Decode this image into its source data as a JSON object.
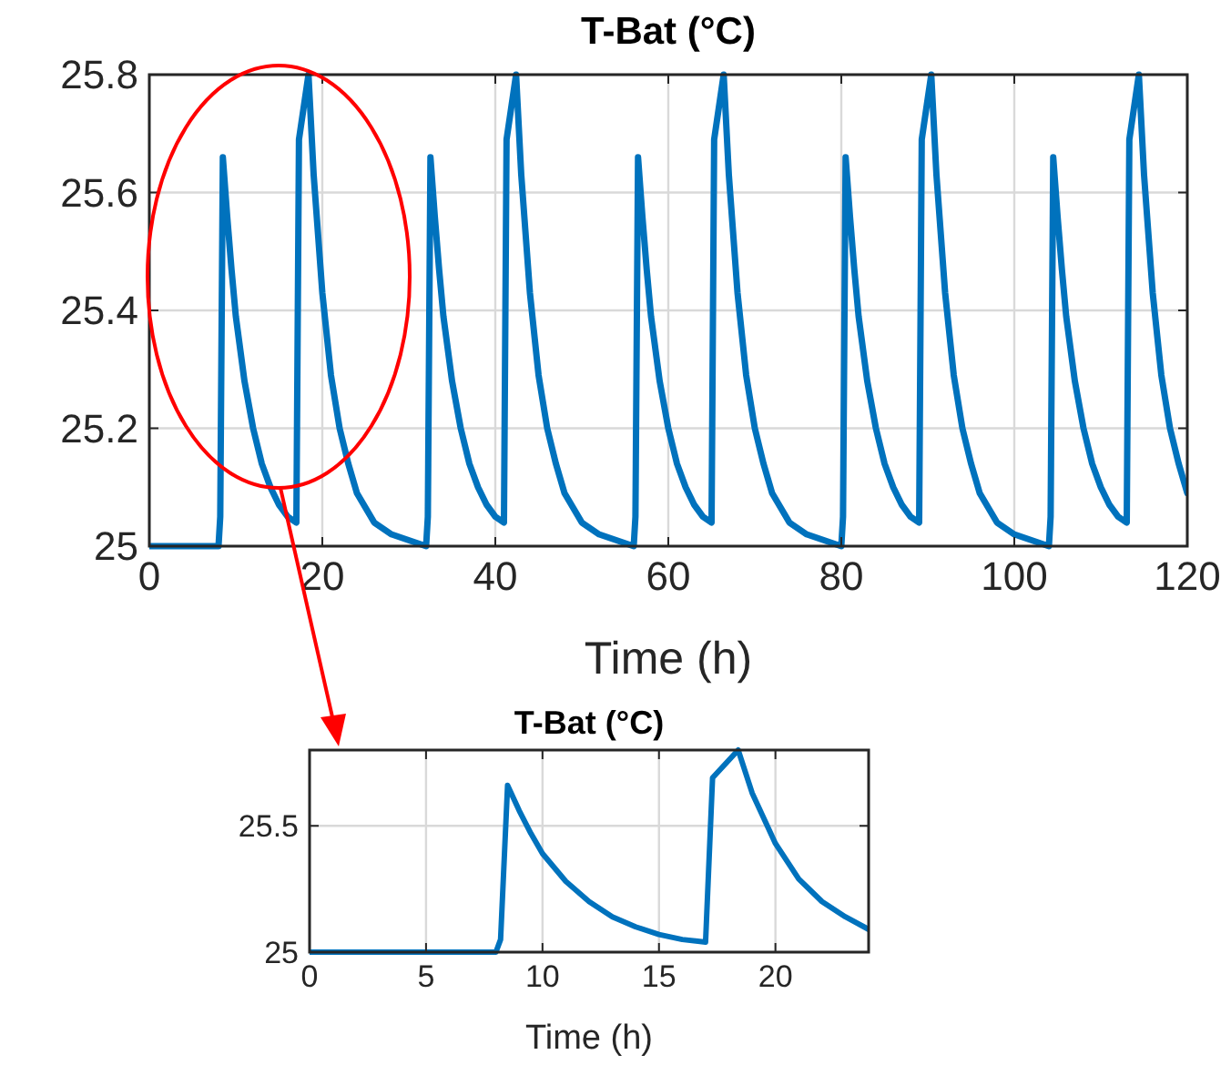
{
  "chart_data": [
    {
      "type": "line",
      "title": "T-Bat (°C)",
      "xlabel": "Time (h)",
      "xlim": [
        0,
        120
      ],
      "ylim": [
        25,
        25.8
      ],
      "xticks": [
        0,
        20,
        40,
        60,
        80,
        100,
        120
      ],
      "yticks": [
        25,
        25.2,
        25.4,
        25.6,
        25.8
      ],
      "grid": true,
      "series": [
        {
          "color": "#0072bd",
          "x": [
            0,
            8,
            8.2,
            8.5,
            9,
            9.5,
            10,
            11,
            12,
            13,
            14,
            15,
            16,
            17,
            17.3,
            18.4,
            19,
            20,
            21,
            22,
            23,
            24,
            26,
            28,
            30,
            32,
            32.2,
            32.5,
            33,
            33.5,
            34,
            35,
            36,
            37,
            38,
            39,
            40,
            41,
            41.3,
            42.4,
            43,
            44,
            45,
            46,
            47,
            48,
            50,
            52,
            54,
            56,
            56.2,
            56.5,
            57,
            57.5,
            58,
            59,
            60,
            61,
            62,
            63,
            64,
            65,
            65.3,
            66.4,
            67,
            68,
            69,
            70,
            71,
            72,
            74,
            76,
            78,
            80,
            80.2,
            80.5,
            81,
            81.5,
            82,
            83,
            84,
            85,
            86,
            87,
            88,
            89,
            89.3,
            90.4,
            91,
            92,
            93,
            94,
            95,
            96,
            98,
            100,
            102,
            104,
            104.2,
            104.5,
            105,
            105.5,
            106,
            107,
            108,
            109,
            110,
            111,
            112,
            113,
            113.3,
            114.4,
            115,
            116,
            117,
            118,
            119,
            120
          ],
          "values": [
            25.0,
            25.0,
            25.05,
            25.66,
            25.56,
            25.47,
            25.39,
            25.28,
            25.2,
            25.14,
            25.1,
            25.07,
            25.05,
            25.04,
            25.69,
            25.8,
            25.63,
            25.43,
            25.29,
            25.2,
            25.14,
            25.09,
            25.04,
            25.02,
            25.01,
            25.0,
            25.05,
            25.66,
            25.56,
            25.47,
            25.39,
            25.28,
            25.2,
            25.14,
            25.1,
            25.07,
            25.05,
            25.04,
            25.69,
            25.8,
            25.63,
            25.43,
            25.29,
            25.2,
            25.14,
            25.09,
            25.04,
            25.02,
            25.01,
            25.0,
            25.05,
            25.66,
            25.56,
            25.47,
            25.39,
            25.28,
            25.2,
            25.14,
            25.1,
            25.07,
            25.05,
            25.04,
            25.69,
            25.8,
            25.63,
            25.43,
            25.29,
            25.2,
            25.14,
            25.09,
            25.04,
            25.02,
            25.01,
            25.0,
            25.05,
            25.66,
            25.56,
            25.47,
            25.39,
            25.28,
            25.2,
            25.14,
            25.1,
            25.07,
            25.05,
            25.04,
            25.69,
            25.8,
            25.63,
            25.43,
            25.29,
            25.2,
            25.14,
            25.09,
            25.04,
            25.02,
            25.01,
            25.0,
            25.05,
            25.66,
            25.56,
            25.47,
            25.39,
            25.28,
            25.2,
            25.14,
            25.1,
            25.07,
            25.05,
            25.04,
            25.69,
            25.8,
            25.63,
            25.43,
            25.29,
            25.2,
            25.14,
            25.09
          ]
        }
      ]
    },
    {
      "type": "line",
      "title": "T-Bat (°C)",
      "xlabel": "Time (h)",
      "xlim": [
        0,
        24
      ],
      "ylim": [
        25,
        25.8
      ],
      "xticks": [
        0,
        5,
        10,
        15,
        20
      ],
      "yticks": [
        25,
        25.5
      ],
      "grid": true,
      "series": [
        {
          "color": "#0072bd",
          "x": [
            0,
            8,
            8.2,
            8.5,
            9,
            9.5,
            10,
            11,
            12,
            13,
            14,
            15,
            16,
            17,
            17.3,
            18.4,
            19,
            20,
            21,
            22,
            23,
            24
          ],
          "values": [
            25.0,
            25.0,
            25.05,
            25.66,
            25.56,
            25.47,
            25.39,
            25.28,
            25.2,
            25.14,
            25.1,
            25.07,
            25.05,
            25.04,
            25.69,
            25.8,
            25.63,
            25.43,
            25.29,
            25.2,
            25.14,
            25.09
          ]
        }
      ]
    }
  ]
}
